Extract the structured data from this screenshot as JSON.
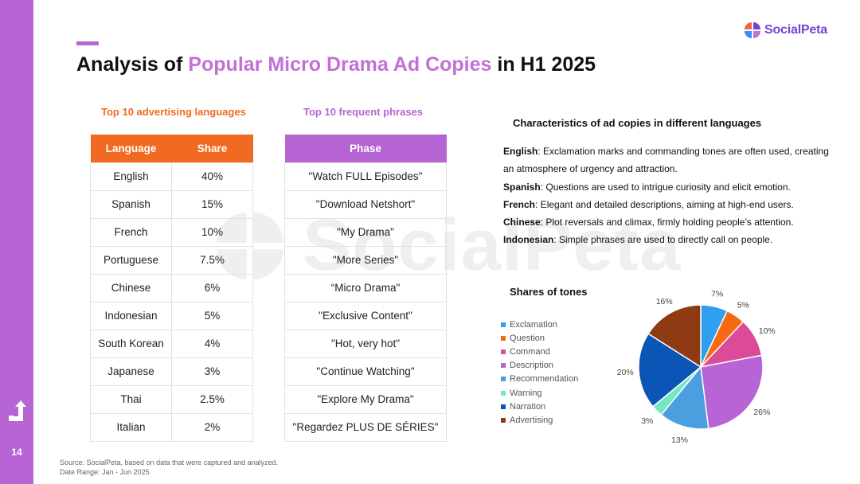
{
  "page_number": "14",
  "title": {
    "prefix": "Analysis of ",
    "highlight": "Popular Micro Drama Ad Copies",
    "suffix": " in H1 2025"
  },
  "logo": {
    "text": "SocialPeta"
  },
  "watermark": {
    "text": "SocialPeta"
  },
  "languages_section": {
    "title": "Top 10 advertising languages",
    "headers": [
      "Language",
      "Share"
    ],
    "rows": [
      [
        "English",
        "40%"
      ],
      [
        "Spanish",
        "15%"
      ],
      [
        "French",
        "10%"
      ],
      [
        "Portuguese",
        "7.5%"
      ],
      [
        "Chinese",
        "6%"
      ],
      [
        "Indonesian",
        "5%"
      ],
      [
        "South Korean",
        "4%"
      ],
      [
        "Japanese",
        "3%"
      ],
      [
        "Thai",
        "2.5%"
      ],
      [
        "Italian",
        "2%"
      ]
    ]
  },
  "phrases_section": {
    "title": "Top 10 frequent phrases",
    "header": "Phase",
    "rows": [
      "\"Watch FULL Episodes\"",
      "\"Download Netshort\"",
      "\"My Drama\"",
      "\"More Series\"",
      "“Micro Drama\"",
      "\"Exclusive Content\"",
      "\"Hot, very hot\"",
      "\"Continue Watching\"",
      "\"Explore My Drama\"",
      "\"Regardez PLUS DE SÉRIES\""
    ]
  },
  "characteristics": {
    "title": "Characteristics of ad copies in different languages",
    "items": [
      {
        "lang": "English",
        "text": ": Exclamation marks and commanding tones are often used, creating an atmosphere of urgency and attraction."
      },
      {
        "lang": "Spanish",
        "text": ": Questions are used to intrigue curiosity and elicit emotion."
      },
      {
        "lang": "French",
        "text": ": Elegant and detailed descriptions, aiming at high-end users."
      },
      {
        "lang": "Chinese",
        "text": ": Plot reversals and climax, firmly holding people’s attention."
      },
      {
        "lang": "Indonesian",
        "text": ": Simple phrases are used to directly call on people."
      }
    ]
  },
  "chart_data": {
    "type": "pie",
    "title": "Shares of tones",
    "categories": [
      "Exclamation",
      "Question",
      "Command",
      "Description",
      "Recommendation",
      "Warning",
      "Narration",
      "Advertising"
    ],
    "values": [
      7,
      5,
      10,
      26,
      13,
      3,
      20,
      16
    ],
    "labels": [
      "7%",
      "5%",
      "10%",
      "26%",
      "13%",
      "3%",
      "20%",
      "16%"
    ],
    "colors": [
      "#2f9ff2",
      "#f66a12",
      "#dc4b98",
      "#b764d6",
      "#4c9fdf",
      "#72e8c0",
      "#0a55b6",
      "#8e3a12"
    ],
    "legend_position": "left"
  },
  "footer": {
    "source": "Source: SocialPeta, based on data that were captured and analyzed.",
    "date_range": "Date Range: Jan - Jun 2025"
  }
}
